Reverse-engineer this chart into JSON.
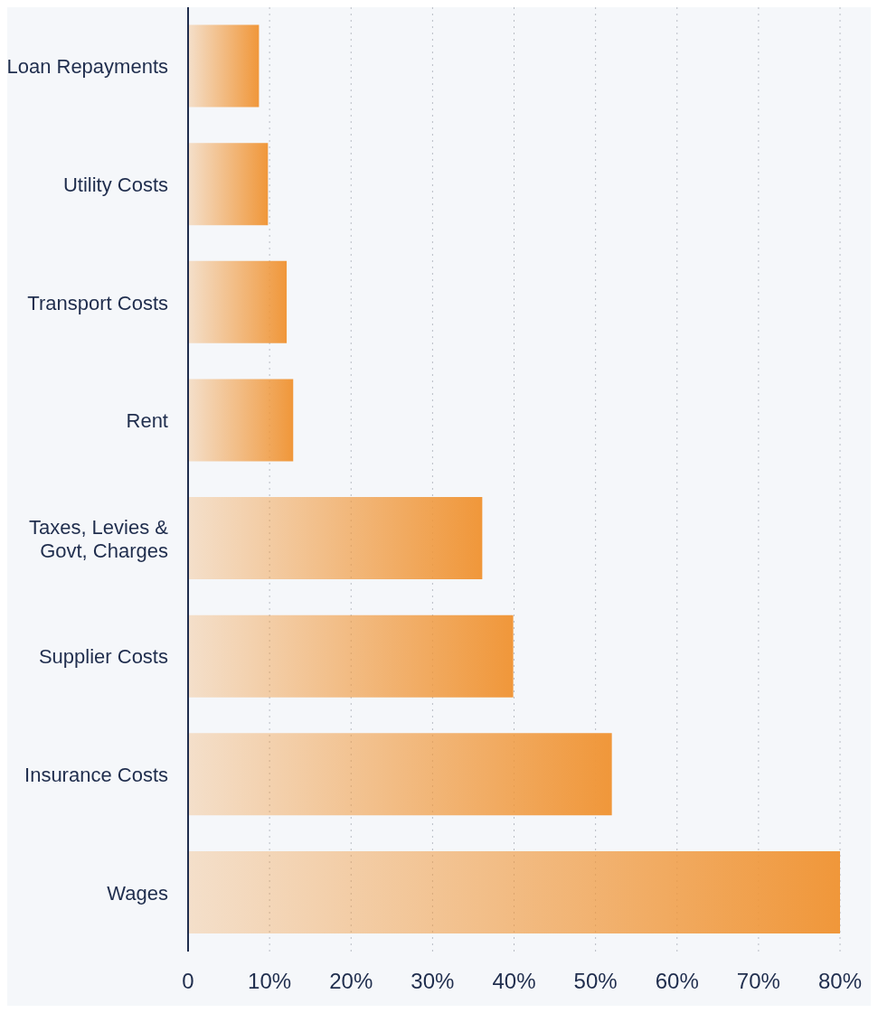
{
  "chart_data": {
    "type": "bar",
    "orientation": "horizontal",
    "categories": [
      "Loan Repayments",
      "Utility Costs",
      "Transport Costs",
      "Rent",
      "Taxes, Levies & Govt, Charges",
      "Supplier Costs",
      "Insurance Costs",
      "Wages"
    ],
    "values": [
      8.7,
      9.8,
      12.1,
      12.9,
      36.1,
      39.9,
      52,
      80
    ],
    "color": "#f0973a",
    "xlim": [
      0,
      80
    ],
    "xticks": [
      0,
      {
        "value": 10,
        "label": "10%"
      },
      {
        "value": 20,
        "label": "20%"
      },
      {
        "value": 30,
        "label": "30%"
      },
      {
        "value": 40,
        "label": "40%"
      },
      {
        "value": 50,
        "label": "50%"
      },
      {
        "value": 60,
        "label": "60%"
      },
      {
        "value": 70,
        "label": "70%"
      },
      {
        "value": 80,
        "label": "80%"
      }
    ],
    "grid": "x"
  }
}
